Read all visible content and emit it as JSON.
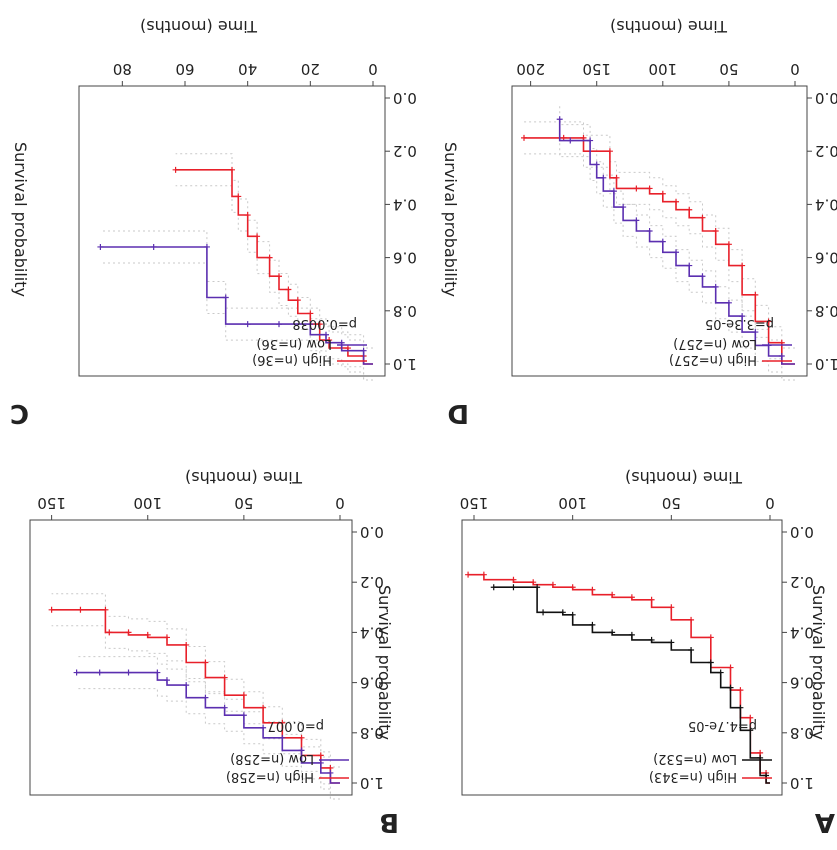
{
  "chart_data": [
    {
      "panel": "A",
      "type": "line",
      "title": "",
      "xlabel": "Time (months)",
      "ylabel": "Survival probability",
      "xticks": [
        "0",
        "50",
        "100",
        "150"
      ],
      "yticks": [
        "0.0",
        "0.2",
        "0.4",
        "0.6",
        "0.8",
        "1.0"
      ],
      "xlim": [
        0,
        150
      ],
      "ylim": [
        0,
        1
      ],
      "pvalue": "p=4.7e-05",
      "confidence_bands": false,
      "series": [
        {
          "name": "High (n=343)",
          "color": "#e8202a",
          "x": [
            0,
            2,
            5,
            10,
            15,
            20,
            30,
            40,
            50,
            60,
            70,
            80,
            90,
            100,
            110,
            120,
            130,
            145,
            153
          ],
          "y": [
            1.0,
            0.96,
            0.88,
            0.74,
            0.63,
            0.54,
            0.42,
            0.35,
            0.3,
            0.27,
            0.26,
            0.25,
            0.23,
            0.22,
            0.21,
            0.2,
            0.19,
            0.17,
            0.17
          ]
        },
        {
          "name": "Low (n=532)",
          "color": "#111111",
          "x": [
            0,
            2,
            5,
            10,
            15,
            20,
            25,
            30,
            40,
            50,
            60,
            70,
            80,
            90,
            100,
            105,
            115,
            118,
            130,
            140
          ],
          "y": [
            1.0,
            0.97,
            0.9,
            0.79,
            0.7,
            0.62,
            0.56,
            0.52,
            0.47,
            0.44,
            0.43,
            0.41,
            0.4,
            0.37,
            0.33,
            0.32,
            0.32,
            0.22,
            0.22,
            0.22
          ]
        }
      ]
    },
    {
      "panel": "B",
      "type": "line",
      "title": "",
      "xlabel": "Time (months)",
      "ylabel": "Survival probability",
      "xticks": [
        "0",
        "50",
        "100",
        "150"
      ],
      "yticks": [
        "0.0",
        "0.2",
        "0.4",
        "0.6",
        "0.8",
        "1.0"
      ],
      "xlim": [
        0,
        155
      ],
      "ylim": [
        0,
        1
      ],
      "pvalue": "p=0.007",
      "confidence_bands": true,
      "series": [
        {
          "name": "High (n=258)",
          "color": "#e8202a",
          "x": [
            0,
            5,
            10,
            20,
            30,
            40,
            50,
            60,
            70,
            80,
            90,
            100,
            110,
            120,
            122,
            135,
            150
          ],
          "y": [
            1.0,
            0.94,
            0.89,
            0.82,
            0.76,
            0.7,
            0.65,
            0.58,
            0.52,
            0.45,
            0.42,
            0.41,
            0.4,
            0.4,
            0.31,
            0.31,
            0.31
          ]
        },
        {
          "name": "Low (n=258)",
          "color": "#5b2fb0",
          "x": [
            0,
            5,
            10,
            20,
            30,
            40,
            50,
            60,
            70,
            80,
            90,
            95,
            110,
            125,
            137
          ],
          "y": [
            1.0,
            0.96,
            0.92,
            0.87,
            0.82,
            0.78,
            0.73,
            0.7,
            0.66,
            0.61,
            0.59,
            0.56,
            0.56,
            0.56,
            0.56
          ]
        }
      ]
    },
    {
      "panel": "C",
      "type": "line",
      "title": "",
      "xlabel": "Time (months)",
      "ylabel": "Survival probability",
      "xticks": [
        "0",
        "20",
        "40",
        "60",
        "80"
      ],
      "yticks": [
        "0.0",
        "0.2",
        "0.4",
        "0.6",
        "0.8",
        "1.0"
      ],
      "xlim": [
        0,
        90
      ],
      "ylim": [
        0,
        1
      ],
      "pvalue": "p=0.0038",
      "confidence_bands": true,
      "series": [
        {
          "name": "High (n=36)",
          "color": "#e8202a",
          "x": [
            0,
            3,
            8,
            14,
            17,
            20,
            24,
            27,
            30,
            33,
            37,
            40,
            43,
            45,
            63
          ],
          "y": [
            1.0,
            0.97,
            0.94,
            0.91,
            0.85,
            0.81,
            0.76,
            0.72,
            0.67,
            0.6,
            0.52,
            0.44,
            0.37,
            0.27,
            0.27
          ]
        },
        {
          "name": "Low (n=36)",
          "color": "#5b2fb0",
          "x": [
            0,
            3,
            10,
            15,
            20,
            30,
            40,
            47,
            53,
            70,
            87
          ],
          "y": [
            1.0,
            0.95,
            0.92,
            0.89,
            0.85,
            0.85,
            0.85,
            0.75,
            0.56,
            0.56,
            0.56
          ]
        }
      ]
    },
    {
      "panel": "D",
      "type": "line",
      "title": "",
      "xlabel": "Time (months)",
      "ylabel": "Survival probability",
      "xticks": [
        "0",
        "50",
        "100",
        "150",
        "200"
      ],
      "yticks": [
        "0.0",
        "0.2",
        "0.4",
        "0.6",
        "0.8",
        "1.0"
      ],
      "xlim": [
        0,
        205
      ],
      "ylim": [
        0,
        1
      ],
      "pvalue": "p=3.3e-05",
      "confidence_bands": true,
      "series": [
        {
          "name": "High (n=257)",
          "color": "#e8202a",
          "x": [
            0,
            10,
            20,
            30,
            40,
            50,
            60,
            70,
            80,
            90,
            100,
            110,
            120,
            135,
            140,
            160,
            175,
            205
          ],
          "y": [
            1.0,
            0.92,
            0.84,
            0.74,
            0.63,
            0.55,
            0.5,
            0.45,
            0.42,
            0.39,
            0.36,
            0.34,
            0.34,
            0.3,
            0.2,
            0.15,
            0.15,
            0.15
          ]
        },
        {
          "name": "Low (n=257)",
          "color": "#5b2fb0",
          "x": [
            0,
            10,
            20,
            30,
            40,
            50,
            60,
            70,
            80,
            90,
            100,
            110,
            120,
            130,
            137,
            145,
            150,
            155,
            170,
            178
          ],
          "y": [
            1.0,
            0.97,
            0.93,
            0.88,
            0.82,
            0.77,
            0.71,
            0.67,
            0.63,
            0.58,
            0.54,
            0.5,
            0.46,
            0.41,
            0.35,
            0.3,
            0.25,
            0.16,
            0.16,
            0.08
          ]
        }
      ]
    }
  ]
}
